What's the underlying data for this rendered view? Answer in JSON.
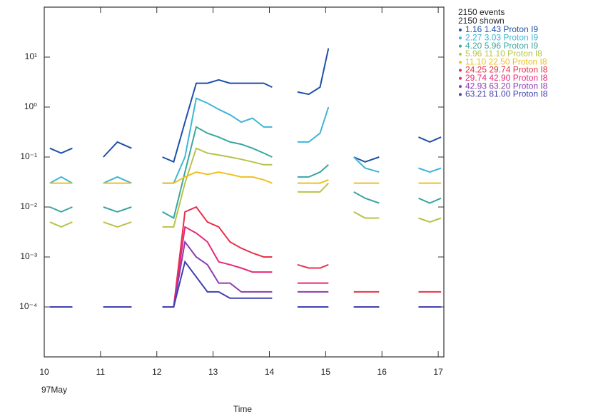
{
  "chart_data": {
    "type": "line",
    "xlabel": "Time",
    "x_sublabel": "97May",
    "legend_header": [
      "2150 events",
      "2150 shown"
    ],
    "xlim": [
      10,
      17.1
    ],
    "ylim": [
      1e-05,
      100
    ],
    "y_log": true,
    "xticks": [
      10,
      11,
      12,
      13,
      14,
      15,
      16,
      17
    ],
    "yticks": [
      {
        "value": 0.0001,
        "label": "10⁻⁴"
      },
      {
        "value": 0.001,
        "label": "10⁻³"
      },
      {
        "value": 0.01,
        "label": "10⁻²"
      },
      {
        "value": 0.1,
        "label": "10⁻¹"
      },
      {
        "value": 1,
        "label": "10⁰"
      },
      {
        "value": 10,
        "label": "10¹"
      }
    ],
    "x": [
      10.1,
      10.3,
      10.5,
      10.8,
      11.05,
      11.3,
      11.55,
      11.8,
      12.1,
      12.3,
      12.5,
      12.7,
      12.9,
      13.1,
      13.3,
      13.5,
      13.7,
      13.9,
      14.05,
      14.25,
      14.5,
      14.7,
      14.9,
      15.05,
      15.3,
      15.5,
      15.7,
      15.95,
      16.3,
      16.65,
      16.85,
      17.05
    ],
    "series": [
      {
        "name": "1.16  1.43 Proton I9",
        "color": "#1f4fa8",
        "values": [
          0.15,
          0.12,
          0.15,
          null,
          0.1,
          0.2,
          0.15,
          null,
          0.1,
          0.08,
          0.5,
          3,
          3,
          3.5,
          3,
          3,
          3,
          3,
          2.5,
          null,
          2,
          1.8,
          2.5,
          15,
          null,
          0.1,
          0.08,
          0.1,
          null,
          0.25,
          0.2,
          0.25
        ]
      },
      {
        "name": "2.27  3.03 Proton I9",
        "color": "#3fb6d8",
        "values": [
          0.03,
          0.04,
          0.03,
          null,
          0.03,
          0.04,
          0.03,
          null,
          0.03,
          0.03,
          0.1,
          1.5,
          1.2,
          0.9,
          0.7,
          0.5,
          0.6,
          0.4,
          0.4,
          null,
          0.2,
          0.2,
          0.3,
          1,
          null,
          0.1,
          0.06,
          0.05,
          null,
          0.06,
          0.05,
          0.06
        ]
      },
      {
        "name": "4.20  5.96 Proton I9",
        "color": "#3aa6a0",
        "values": [
          0.01,
          0.008,
          0.01,
          null,
          0.01,
          0.008,
          0.01,
          null,
          0.008,
          0.006,
          0.05,
          0.4,
          0.3,
          0.25,
          0.2,
          0.18,
          0.15,
          0.12,
          0.1,
          null,
          0.04,
          0.04,
          0.05,
          0.07,
          null,
          0.02,
          0.015,
          0.012,
          null,
          0.015,
          0.012,
          0.015
        ]
      },
      {
        "name": "5.96  11.10 Proton I8",
        "color": "#b8c34a",
        "values": [
          0.005,
          0.004,
          0.005,
          null,
          0.005,
          0.004,
          0.005,
          null,
          0.004,
          0.004,
          0.03,
          0.15,
          0.12,
          0.11,
          0.1,
          0.09,
          0.08,
          0.07,
          0.07,
          null,
          0.02,
          0.02,
          0.02,
          0.03,
          null,
          0.008,
          0.006,
          0.006,
          null,
          0.006,
          0.005,
          0.006
        ]
      },
      {
        "name": "11.10  22.50 Proton I8",
        "color": "#f0c020",
        "values": [
          0.03,
          0.03,
          0.03,
          null,
          0.03,
          0.03,
          0.03,
          null,
          0.03,
          0.03,
          0.04,
          0.05,
          0.045,
          0.05,
          0.045,
          0.04,
          0.04,
          0.035,
          0.03,
          null,
          0.03,
          0.03,
          0.03,
          0.035,
          null,
          0.03,
          0.03,
          0.03,
          null,
          0.03,
          0.03,
          0.03
        ]
      },
      {
        "name": "24.25  29.74 Proton I8",
        "color": "#e8304a",
        "values": [
          0.0001,
          0.0001,
          0.0001,
          null,
          0.0001,
          0.0001,
          0.0001,
          null,
          0.0001,
          0.0001,
          0.008,
          0.01,
          0.005,
          0.004,
          0.002,
          0.0015,
          0.0012,
          0.001,
          0.001,
          null,
          0.0007,
          0.0006,
          0.0006,
          0.0007,
          null,
          0.0002,
          0.0002,
          0.0002,
          null,
          0.0002,
          0.0002,
          0.0002
        ]
      },
      {
        "name": "29.74  42.90 Proton I8",
        "color": "#e82878",
        "values": [
          0.0001,
          0.0001,
          0.0001,
          null,
          0.0001,
          0.0001,
          0.0001,
          null,
          0.0001,
          0.0001,
          0.004,
          0.003,
          0.002,
          0.0008,
          0.0007,
          0.0006,
          0.0005,
          0.0005,
          0.0005,
          null,
          0.0003,
          0.0003,
          0.0003,
          0.0003,
          null,
          0.0001,
          0.0001,
          0.0001,
          null,
          0.0001,
          0.0001,
          0.0001
        ]
      },
      {
        "name": "42.93  63.20 Proton I8",
        "color": "#8a3cb0",
        "values": [
          0.0001,
          0.0001,
          0.0001,
          null,
          0.0001,
          0.0001,
          0.0001,
          null,
          0.0001,
          0.0001,
          0.002,
          0.001,
          0.0007,
          0.0003,
          0.0003,
          0.0002,
          0.0002,
          0.0002,
          0.0002,
          null,
          0.0002,
          0.0002,
          0.0002,
          0.0002,
          null,
          0.0001,
          0.0001,
          0.0001,
          null,
          0.0001,
          0.0001,
          0.0001
        ]
      },
      {
        "name": "63.21  81.00 Proton I8",
        "color": "#4040b0",
        "values": [
          0.0001,
          0.0001,
          0.0001,
          null,
          0.0001,
          0.0001,
          0.0001,
          null,
          0.0001,
          0.0001,
          0.0008,
          0.0004,
          0.0002,
          0.0002,
          0.00015,
          0.00015,
          0.00015,
          0.00015,
          0.00015,
          null,
          0.0001,
          0.0001,
          0.0001,
          0.0001,
          null,
          0.0001,
          0.0001,
          0.0001,
          null,
          0.0001,
          0.0001,
          0.0001
        ]
      }
    ]
  }
}
